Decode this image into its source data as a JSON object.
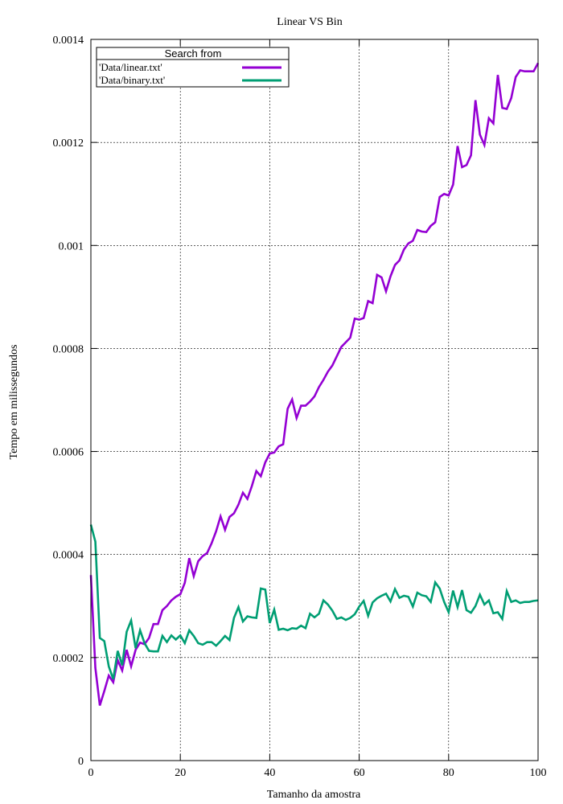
{
  "chart_data": {
    "type": "line",
    "title": "Linear VS Bin",
    "xlabel": "Tamanho da amostra",
    "ylabel": "Tempo em milissegundos",
    "xlim": [
      0,
      100
    ],
    "ylim": [
      0,
      0.0014
    ],
    "grid": true,
    "legend": {
      "title": "Search from",
      "placement": "top-left"
    },
    "x_ticks": [
      {
        "value": 0,
        "label": "0"
      },
      {
        "value": 20,
        "label": "20"
      },
      {
        "value": 40,
        "label": "40"
      },
      {
        "value": 60,
        "label": "60"
      },
      {
        "value": 80,
        "label": "80"
      },
      {
        "value": 100,
        "label": "100"
      }
    ],
    "y_ticks": [
      {
        "value": 0,
        "label": "0"
      },
      {
        "value": 0.0002,
        "label": "0.0002"
      },
      {
        "value": 0.0004,
        "label": "0.0004"
      },
      {
        "value": 0.0006,
        "label": "0.0006"
      },
      {
        "value": 0.0008,
        "label": "0.0008"
      },
      {
        "value": 0.001,
        "label": "0.001"
      },
      {
        "value": 0.0012,
        "label": "0.0012"
      },
      {
        "value": 0.0014,
        "label": "0.0014"
      }
    ],
    "x": [
      0,
      1,
      2,
      3,
      4,
      5,
      6,
      7,
      8,
      9,
      10,
      11,
      12,
      13,
      14,
      15,
      16,
      17,
      18,
      19,
      20,
      21,
      22,
      23,
      24,
      25,
      26,
      27,
      28,
      29,
      30,
      31,
      32,
      33,
      34,
      35,
      36,
      37,
      38,
      39,
      40,
      41,
      42,
      43,
      44,
      45,
      46,
      47,
      48,
      49,
      50,
      51,
      52,
      53,
      54,
      55,
      56,
      57,
      58,
      59,
      60,
      61,
      62,
      63,
      64,
      65,
      66,
      67,
      68,
      69,
      70,
      71,
      72,
      73,
      74,
      75,
      76,
      77,
      78,
      79,
      80,
      81,
      82,
      83,
      84,
      85,
      86,
      87,
      88,
      89,
      90,
      91,
      92,
      93,
      94,
      95,
      96,
      97,
      98,
      99,
      100
    ],
    "series": [
      {
        "name": "'Data/linear.txt'",
        "color": "#9400d3",
        "values": [
          0.00036,
          0.00018,
          0.000107,
          0.000135,
          0.000165,
          0.000152,
          0.000195,
          0.000175,
          0.000215,
          0.000183,
          0.000215,
          0.000229,
          0.000226,
          0.000238,
          0.000265,
          0.000265,
          0.000292,
          0.0003,
          0.000311,
          0.000318,
          0.000323,
          0.000345,
          0.000393,
          0.000358,
          0.000387,
          0.000397,
          0.000403,
          0.000422,
          0.000445,
          0.000474,
          0.000448,
          0.000473,
          0.00048,
          0.000497,
          0.00052,
          0.000508,
          0.000533,
          0.000562,
          0.000552,
          0.000579,
          0.000596,
          0.000598,
          0.00061,
          0.000614,
          0.000683,
          0.000701,
          0.000665,
          0.000689,
          0.000689,
          0.000697,
          0.000707,
          0.000725,
          0.000739,
          0.000755,
          0.000767,
          0.000785,
          0.000803,
          0.000812,
          0.000821,
          0.000858,
          0.000856,
          0.000859,
          0.000892,
          0.000888,
          0.000943,
          0.000938,
          0.000911,
          0.00094,
          0.000962,
          0.000971,
          0.000992,
          0.001004,
          0.001009,
          0.00103,
          0.001027,
          0.001026,
          0.001038,
          0.001045,
          0.001094,
          0.0011,
          0.001097,
          0.001118,
          0.001193,
          0.001152,
          0.001156,
          0.001175,
          0.001282,
          0.001215,
          0.001195,
          0.001247,
          0.001237,
          0.001331,
          0.001267,
          0.001265,
          0.001286,
          0.001327,
          0.00134,
          0.001338,
          0.001338,
          0.001338,
          0.001354
        ]
      },
      {
        "name": "'Data/binary.txt'",
        "color": "#009e73",
        "values": [
          0.000458,
          0.000425,
          0.000238,
          0.000232,
          0.000183,
          0.000158,
          0.000213,
          0.000185,
          0.00025,
          0.000272,
          0.000218,
          0.000253,
          0.000228,
          0.000213,
          0.000212,
          0.000212,
          0.000242,
          0.00023,
          0.000243,
          0.000235,
          0.000243,
          0.000228,
          0.000253,
          0.000242,
          0.000228,
          0.000225,
          0.00023,
          0.00023,
          0.000223,
          0.000232,
          0.000242,
          0.000234,
          0.000277,
          0.000298,
          0.00027,
          0.00028,
          0.000278,
          0.000277,
          0.000334,
          0.000332,
          0.000267,
          0.000293,
          0.000254,
          0.000256,
          0.000253,
          0.000257,
          0.000256,
          0.000262,
          0.000257,
          0.000285,
          0.000278,
          0.000285,
          0.000311,
          0.000303,
          0.000291,
          0.000275,
          0.000278,
          0.000273,
          0.000277,
          0.000284,
          0.000299,
          0.00031,
          0.000281,
          0.000307,
          0.000315,
          0.00032,
          0.000324,
          0.000309,
          0.000333,
          0.000316,
          0.00032,
          0.000318,
          0.000299,
          0.000326,
          0.000321,
          0.000319,
          0.000308,
          0.000346,
          0.000334,
          0.000308,
          0.000288,
          0.00033,
          0.000298,
          0.000331,
          0.000292,
          0.000287,
          0.0003,
          0.000322,
          0.000303,
          0.000311,
          0.000286,
          0.000288,
          0.000275,
          0.000329,
          0.000308,
          0.000311,
          0.000306,
          0.000308,
          0.000308,
          0.00031,
          0.000311
        ]
      }
    ]
  }
}
